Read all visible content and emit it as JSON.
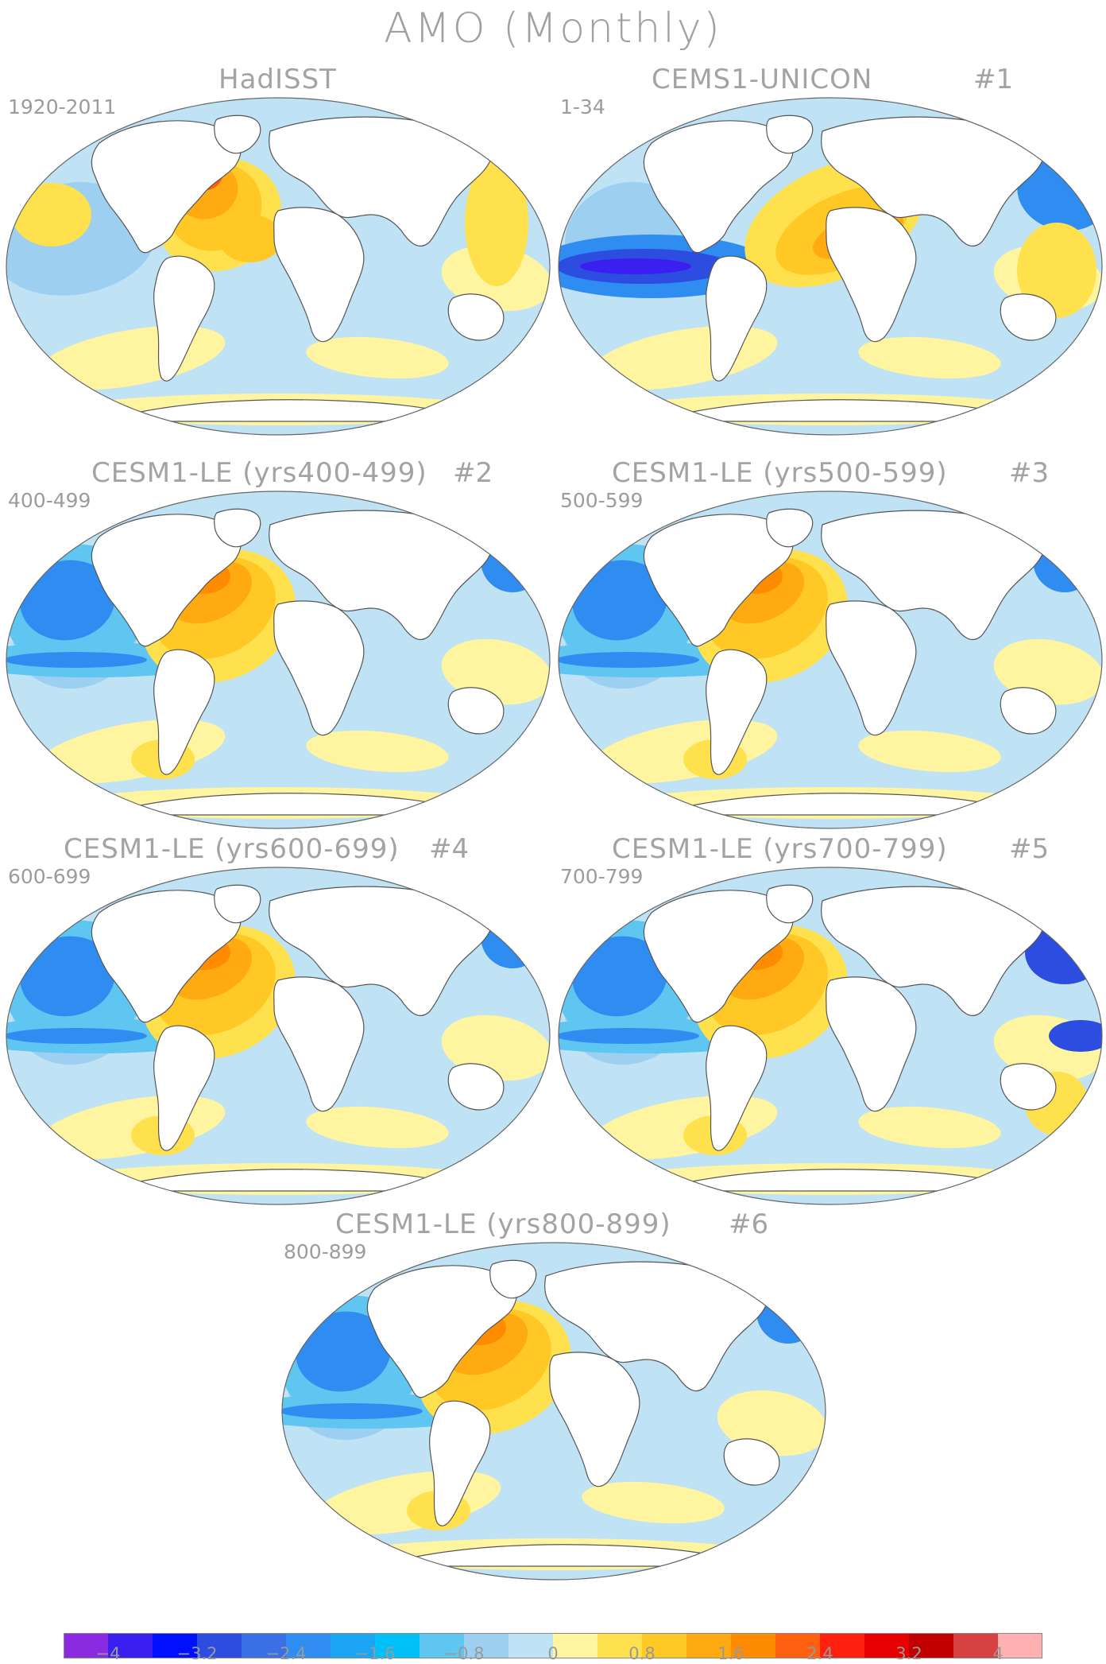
{
  "title": "AMO (Monthly)",
  "panels": [
    {
      "id": "p0",
      "title": "HadISST",
      "number": "",
      "years": "1920-2011"
    },
    {
      "id": "p1",
      "title": "CEMS1-UNICON",
      "number": "#1",
      "years": "1-34"
    },
    {
      "id": "p2",
      "title": "CESM1-LE (yrs400-499)",
      "number": "#2",
      "years": "400-499"
    },
    {
      "id": "p3",
      "title": "CESM1-LE (yrs500-599)",
      "number": "#3",
      "years": "500-599"
    },
    {
      "id": "p4",
      "title": "CESM1-LE (yrs600-699)",
      "number": "#4",
      "years": "600-699"
    },
    {
      "id": "p5",
      "title": "CESM1-LE (yrs700-799)",
      "number": "#5",
      "years": "700-799"
    },
    {
      "id": "p6",
      "title": "CESM1-LE (yrs800-899)",
      "number": "#6",
      "years": "800-899"
    }
  ],
  "colorbar": {
    "colors": [
      "#8a2be2",
      "#3a1ff0",
      "#0010ff",
      "#2d4de0",
      "#3a6fe6",
      "#2f8cf0",
      "#1aa6f5",
      "#00c0f8",
      "#5ec6f0",
      "#9ccff0",
      "#bfe2f5",
      "#fff5a0",
      "#ffe14d",
      "#ffc825",
      "#ffaa10",
      "#ff8c00",
      "#ff6010",
      "#ff2010",
      "#e60000",
      "#c20000",
      "#d94040",
      "#ffb0b0"
    ],
    "tick_labels": [
      "−4",
      "−3.2",
      "−2.4",
      "−1.6",
      "−0.8",
      "0",
      "0.8",
      "1.6",
      "2.4",
      "3.2",
      "4"
    ]
  }
}
